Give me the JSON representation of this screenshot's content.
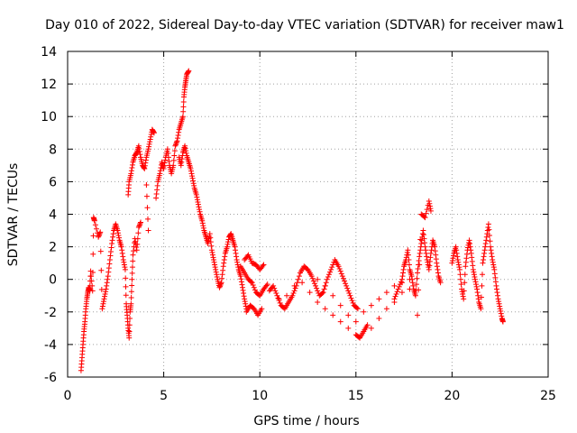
{
  "chart_data": {
    "type": "scatter",
    "title": "Day 010 of 2022, Sidereal Day-to-day VTEC variation (SDTVAR) for receiver maw1",
    "xlabel": "GPS time / hours",
    "ylabel": "SDTVAR / TECUs",
    "xlim": [
      0,
      25
    ],
    "ylim": [
      -6,
      14
    ],
    "xticks": [
      0,
      5,
      10,
      15,
      20,
      25
    ],
    "yticks": [
      -6,
      -4,
      -2,
      0,
      2,
      4,
      6,
      8,
      10,
      12,
      14
    ],
    "grid": true,
    "marker": "+",
    "color": "#ff0000",
    "series": [
      {
        "name": "SDTVAR",
        "points": [
          [
            0.7,
            -5.6
          ],
          [
            0.75,
            -4.8
          ],
          [
            0.8,
            -4.0
          ],
          [
            0.85,
            -3.2
          ],
          [
            0.9,
            -2.6
          ],
          [
            0.95,
            -1.8
          ],
          [
            1.0,
            -1.2
          ],
          [
            1.05,
            -0.8
          ],
          [
            1.1,
            -0.5
          ],
          [
            1.15,
            -0.7
          ],
          [
            1.2,
            0.5
          ],
          [
            1.3,
            -0.7
          ],
          [
            1.35,
            3.8
          ],
          [
            1.4,
            3.6
          ],
          [
            1.6,
            2.6
          ],
          [
            1.7,
            2.9
          ],
          [
            1.8,
            -1.8
          ],
          [
            1.9,
            -1.2
          ],
          [
            2.0,
            -0.6
          ],
          [
            2.1,
            0.2
          ],
          [
            2.2,
            1.2
          ],
          [
            2.3,
            2.2
          ],
          [
            2.4,
            3.0
          ],
          [
            2.5,
            3.4
          ],
          [
            2.6,
            3.0
          ],
          [
            2.7,
            2.4
          ],
          [
            2.8,
            2.0
          ],
          [
            2.9,
            1.2
          ],
          [
            3.0,
            0.6
          ],
          [
            3.05,
            -1.5
          ],
          [
            3.1,
            -2.2
          ],
          [
            3.15,
            -3.0
          ],
          [
            3.2,
            -3.6
          ],
          [
            3.25,
            -2.0
          ],
          [
            3.3,
            -1.5
          ],
          [
            3.35,
            0.0
          ],
          [
            3.4,
            1.5
          ],
          [
            3.5,
            2.5
          ],
          [
            3.6,
            1.8
          ],
          [
            3.7,
            3.2
          ],
          [
            3.8,
            3.5
          ],
          [
            3.15,
            5.2
          ],
          [
            3.2,
            6.0
          ],
          [
            3.3,
            6.5
          ],
          [
            3.4,
            7.2
          ],
          [
            3.5,
            7.6
          ],
          [
            3.6,
            7.8
          ],
          [
            3.7,
            8.2
          ],
          [
            3.8,
            7.5
          ],
          [
            3.9,
            7.0
          ],
          [
            4.0,
            6.8
          ],
          [
            4.1,
            7.5
          ],
          [
            4.2,
            8.0
          ],
          [
            4.3,
            8.6
          ],
          [
            4.4,
            9.2
          ],
          [
            4.5,
            9.0
          ],
          [
            4.1,
            5.8
          ],
          [
            4.2,
            3.0
          ],
          [
            4.6,
            5.0
          ],
          [
            4.7,
            6.0
          ],
          [
            4.8,
            6.5
          ],
          [
            4.9,
            7.2
          ],
          [
            5.0,
            6.8
          ],
          [
            5.1,
            7.5
          ],
          [
            5.2,
            8.0
          ],
          [
            5.3,
            7.0
          ],
          [
            5.4,
            6.5
          ],
          [
            5.5,
            7.0
          ],
          [
            5.6,
            8.2
          ],
          [
            5.7,
            8.5
          ],
          [
            5.8,
            9.2
          ],
          [
            5.9,
            9.6
          ],
          [
            6.0,
            10.0
          ],
          [
            6.05,
            11.2
          ],
          [
            6.1,
            11.8
          ],
          [
            6.15,
            12.2
          ],
          [
            6.2,
            12.6
          ],
          [
            6.3,
            12.8
          ],
          [
            5.8,
            7.5
          ],
          [
            5.9,
            7.0
          ],
          [
            6.0,
            7.8
          ],
          [
            6.1,
            8.2
          ],
          [
            6.2,
            7.6
          ],
          [
            6.3,
            7.2
          ],
          [
            6.4,
            6.8
          ],
          [
            6.5,
            6.2
          ],
          [
            6.6,
            5.6
          ],
          [
            6.7,
            5.2
          ],
          [
            6.8,
            4.6
          ],
          [
            6.9,
            4.0
          ],
          [
            7.0,
            3.6
          ],
          [
            7.1,
            3.0
          ],
          [
            7.2,
            2.6
          ],
          [
            7.3,
            2.2
          ],
          [
            7.4,
            2.8
          ],
          [
            7.5,
            1.8
          ],
          [
            7.6,
            1.2
          ],
          [
            7.7,
            0.6
          ],
          [
            7.8,
            0.0
          ],
          [
            7.9,
            -0.5
          ],
          [
            8.0,
            -0.2
          ],
          [
            8.1,
            0.8
          ],
          [
            8.2,
            1.6
          ],
          [
            8.3,
            2.0
          ],
          [
            8.4,
            2.6
          ],
          [
            8.5,
            2.8
          ],
          [
            8.6,
            2.4
          ],
          [
            8.7,
            2.0
          ],
          [
            8.8,
            1.2
          ],
          [
            8.9,
            0.6
          ],
          [
            9.0,
            0.2
          ],
          [
            9.1,
            -0.5
          ],
          [
            9.2,
            -1.2
          ],
          [
            9.3,
            -1.8
          ],
          [
            9.0,
            0.8
          ],
          [
            9.2,
            0.4
          ],
          [
            9.4,
            0.0
          ],
          [
            9.6,
            -0.2
          ],
          [
            9.8,
            -0.8
          ],
          [
            10.0,
            -1.0
          ],
          [
            10.2,
            -0.6
          ],
          [
            10.4,
            -0.3
          ],
          [
            9.2,
            1.2
          ],
          [
            9.4,
            1.5
          ],
          [
            9.6,
            1.0
          ],
          [
            9.8,
            0.9
          ],
          [
            10.0,
            0.6
          ],
          [
            10.2,
            0.9
          ],
          [
            9.3,
            -2.0
          ],
          [
            9.5,
            -1.6
          ],
          [
            9.7,
            -1.8
          ],
          [
            9.9,
            -2.2
          ],
          [
            10.1,
            -1.8
          ],
          [
            10.5,
            -0.7
          ],
          [
            10.7,
            -0.4
          ],
          [
            10.9,
            -1.0
          ],
          [
            11.1,
            -1.6
          ],
          [
            11.3,
            -1.8
          ],
          [
            11.5,
            -1.4
          ],
          [
            11.7,
            -1.0
          ],
          [
            11.9,
            -0.4
          ],
          [
            12.1,
            0.4
          ],
          [
            12.3,
            0.8
          ],
          [
            12.5,
            0.6
          ],
          [
            12.7,
            0.2
          ],
          [
            12.9,
            -0.4
          ],
          [
            13.1,
            -1.0
          ],
          [
            13.3,
            -0.8
          ],
          [
            13.5,
            0.0
          ],
          [
            13.7,
            0.6
          ],
          [
            13.9,
            1.2
          ],
          [
            14.1,
            0.8
          ],
          [
            14.3,
            0.2
          ],
          [
            14.5,
            -0.4
          ],
          [
            14.7,
            -1.0
          ],
          [
            14.9,
            -1.6
          ],
          [
            15.1,
            -1.8
          ],
          [
            11.0,
            -1.2
          ],
          [
            11.4,
            -1.0
          ],
          [
            11.8,
            -0.4
          ],
          [
            12.2,
            -0.2
          ],
          [
            12.6,
            -0.8
          ],
          [
            13.0,
            -1.4
          ],
          [
            13.4,
            -1.8
          ],
          [
            13.8,
            -2.2
          ],
          [
            14.2,
            -2.6
          ],
          [
            14.6,
            -3.0
          ],
          [
            15.0,
            -3.4
          ],
          [
            15.2,
            -3.6
          ],
          [
            15.4,
            -3.2
          ],
          [
            15.6,
            -2.8
          ],
          [
            13.0,
            0.0
          ],
          [
            13.4,
            -0.4
          ],
          [
            13.8,
            -1.0
          ],
          [
            14.2,
            -1.6
          ],
          [
            14.6,
            -2.2
          ],
          [
            15.0,
            -2.6
          ],
          [
            15.4,
            -2.0
          ],
          [
            15.8,
            -1.6
          ],
          [
            16.2,
            -1.2
          ],
          [
            16.6,
            -0.8
          ],
          [
            17.0,
            -0.4
          ],
          [
            17.4,
            -0.2
          ],
          [
            17.8,
            0.0
          ],
          [
            15.8,
            -3.0
          ],
          [
            16.2,
            -2.4
          ],
          [
            16.6,
            -1.8
          ],
          [
            17.0,
            -1.4
          ],
          [
            17.4,
            -0.8
          ],
          [
            17.8,
            -0.6
          ],
          [
            17.0,
            -1.2
          ],
          [
            17.2,
            -0.6
          ],
          [
            17.4,
            0.0
          ],
          [
            17.5,
            0.8
          ],
          [
            17.6,
            1.2
          ],
          [
            17.7,
            1.8
          ],
          [
            17.8,
            0.6
          ],
          [
            17.9,
            0.2
          ],
          [
            18.0,
            -0.6
          ],
          [
            18.1,
            -1.0
          ],
          [
            18.2,
            0.4
          ],
          [
            18.3,
            1.4
          ],
          [
            18.4,
            2.2
          ],
          [
            18.5,
            3.0
          ],
          [
            18.6,
            2.0
          ],
          [
            18.7,
            1.2
          ],
          [
            18.8,
            0.6
          ],
          [
            18.9,
            1.6
          ],
          [
            19.0,
            2.4
          ],
          [
            19.1,
            2.0
          ],
          [
            19.2,
            1.0
          ],
          [
            19.3,
            0.2
          ],
          [
            19.4,
            -0.2
          ],
          [
            18.2,
            -2.2
          ],
          [
            18.4,
            4.0
          ],
          [
            18.6,
            3.8
          ],
          [
            18.8,
            4.8
          ],
          [
            18.9,
            4.2
          ],
          [
            20.0,
            1.0
          ],
          [
            20.1,
            1.6
          ],
          [
            20.2,
            2.0
          ],
          [
            20.3,
            1.2
          ],
          [
            20.4,
            0.6
          ],
          [
            20.5,
            -0.6
          ],
          [
            20.6,
            -1.2
          ],
          [
            20.7,
            0.8
          ],
          [
            20.8,
            1.8
          ],
          [
            20.9,
            2.4
          ],
          [
            21.0,
            1.6
          ],
          [
            21.1,
            0.6
          ],
          [
            21.2,
            0.0
          ],
          [
            21.3,
            -0.6
          ],
          [
            21.4,
            -1.4
          ],
          [
            21.5,
            -1.8
          ],
          [
            21.6,
            1.0
          ],
          [
            21.7,
            1.8
          ],
          [
            21.8,
            2.6
          ],
          [
            21.9,
            3.4
          ],
          [
            22.0,
            2.0
          ],
          [
            22.1,
            1.2
          ],
          [
            22.2,
            0.6
          ],
          [
            22.3,
            -0.4
          ],
          [
            22.4,
            -1.2
          ],
          [
            22.5,
            -1.8
          ],
          [
            22.6,
            -2.4
          ],
          [
            22.65,
            -2.6
          ]
        ]
      }
    ]
  }
}
